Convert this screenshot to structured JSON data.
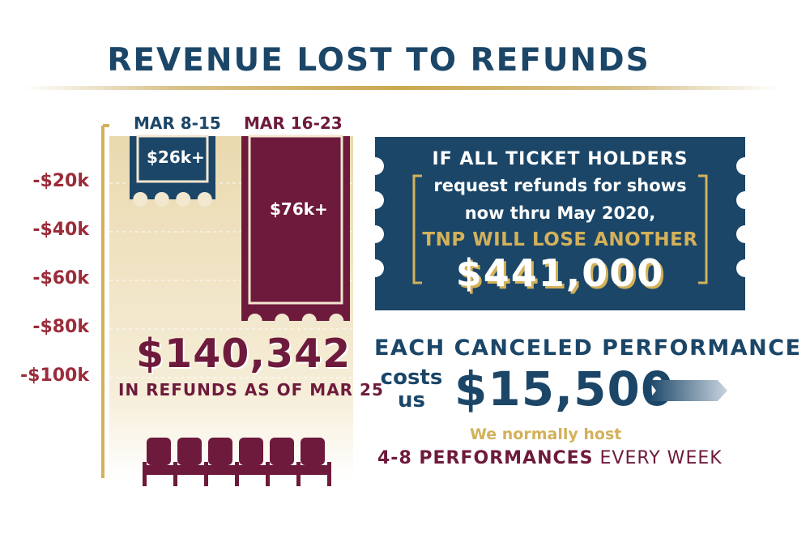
{
  "title": "REVENUE LOST TO REFUNDS",
  "colors": {
    "navy": "#1b4668",
    "maroon": "#6e1a3c",
    "gold": "#d3b15a",
    "cream": "#efe5c9"
  },
  "chart_data": {
    "type": "bar",
    "categories": [
      "MAR 8-15",
      "MAR 16-23"
    ],
    "values": [
      -26000,
      -76000
    ],
    "value_labels": [
      "$26k+",
      "$76k+"
    ],
    "bar_colors": [
      "#1b4668",
      "#6e1a3c"
    ],
    "yticks": [
      -20000,
      -40000,
      -60000,
      -80000,
      -100000
    ],
    "ytick_labels": [
      "-$20k",
      "-$40k",
      "-$60k",
      "-$80k",
      "-$100k"
    ],
    "ylim": [
      -100000,
      0
    ],
    "grid": true,
    "total": {
      "amount": "$140,342",
      "caption": "IN REFUNDS AS OF MAR 25"
    }
  },
  "ticket": {
    "line1": "IF ALL TICKET HOLDERS",
    "line2": "request refunds for shows",
    "line3": "now thru May 2020,",
    "line4": "TNP WILL LOSE ANOTHER",
    "amount": "$441,000"
  },
  "performance": {
    "heading": "EACH CANCELED PERFORMANCE",
    "costs_line1": "costs",
    "costs_line2": "us",
    "amount": "$15,500",
    "normally": "We normally host",
    "frequency_bold": "4-8 PERFORMANCES",
    "frequency_rest": " EVERY WEEK"
  }
}
